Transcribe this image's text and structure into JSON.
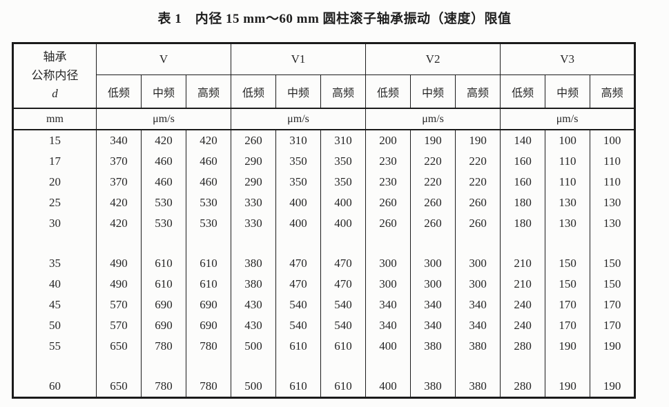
{
  "title": "表 1　内径 15 mm～60 mm 圆柱滚子轴承振动（速度）限值",
  "table": {
    "corner": {
      "line1": "轴承",
      "line2": "公称内径",
      "line3": "d",
      "unit": "mm"
    },
    "groups": [
      {
        "label": "V",
        "sub": [
          "低频",
          "中频",
          "高频"
        ],
        "unit": "μm/s"
      },
      {
        "label": "V1",
        "sub": [
          "低频",
          "中频",
          "高频"
        ],
        "unit": "μm/s"
      },
      {
        "label": "V2",
        "sub": [
          "低频",
          "中频",
          "高频"
        ],
        "unit": "μm/s"
      },
      {
        "label": "V3",
        "sub": [
          "低频",
          "中频",
          "高频"
        ],
        "unit": "μm/s"
      }
    ],
    "rows": [
      {
        "d": "15",
        "spacer_before": false,
        "values": [
          "340",
          "420",
          "420",
          "260",
          "310",
          "310",
          "200",
          "190",
          "190",
          "140",
          "100",
          "100"
        ]
      },
      {
        "d": "17",
        "spacer_before": false,
        "values": [
          "370",
          "460",
          "460",
          "290",
          "350",
          "350",
          "230",
          "220",
          "220",
          "160",
          "110",
          "110"
        ]
      },
      {
        "d": "20",
        "spacer_before": false,
        "values": [
          "370",
          "460",
          "460",
          "290",
          "350",
          "350",
          "230",
          "220",
          "220",
          "160",
          "110",
          "110"
        ]
      },
      {
        "d": "25",
        "spacer_before": false,
        "values": [
          "420",
          "530",
          "530",
          "330",
          "400",
          "400",
          "260",
          "260",
          "260",
          "180",
          "130",
          "130"
        ]
      },
      {
        "d": "30",
        "spacer_before": false,
        "values": [
          "420",
          "530",
          "530",
          "330",
          "400",
          "400",
          "260",
          "260",
          "260",
          "180",
          "130",
          "130"
        ]
      },
      {
        "d": "35",
        "spacer_before": true,
        "values": [
          "490",
          "610",
          "610",
          "380",
          "470",
          "470",
          "300",
          "300",
          "300",
          "210",
          "150",
          "150"
        ]
      },
      {
        "d": "40",
        "spacer_before": false,
        "values": [
          "490",
          "610",
          "610",
          "380",
          "470",
          "470",
          "300",
          "300",
          "300",
          "210",
          "150",
          "150"
        ]
      },
      {
        "d": "45",
        "spacer_before": false,
        "values": [
          "570",
          "690",
          "690",
          "430",
          "540",
          "540",
          "340",
          "340",
          "340",
          "240",
          "170",
          "170"
        ]
      },
      {
        "d": "50",
        "spacer_before": false,
        "values": [
          "570",
          "690",
          "690",
          "430",
          "540",
          "540",
          "340",
          "340",
          "340",
          "240",
          "170",
          "170"
        ]
      },
      {
        "d": "55",
        "spacer_before": false,
        "values": [
          "650",
          "780",
          "780",
          "500",
          "610",
          "610",
          "400",
          "380",
          "380",
          "280",
          "190",
          "190"
        ]
      },
      {
        "d": "60",
        "spacer_before": true,
        "values": [
          "650",
          "780",
          "780",
          "500",
          "610",
          "610",
          "400",
          "380",
          "380",
          "280",
          "190",
          "190"
        ]
      }
    ]
  }
}
